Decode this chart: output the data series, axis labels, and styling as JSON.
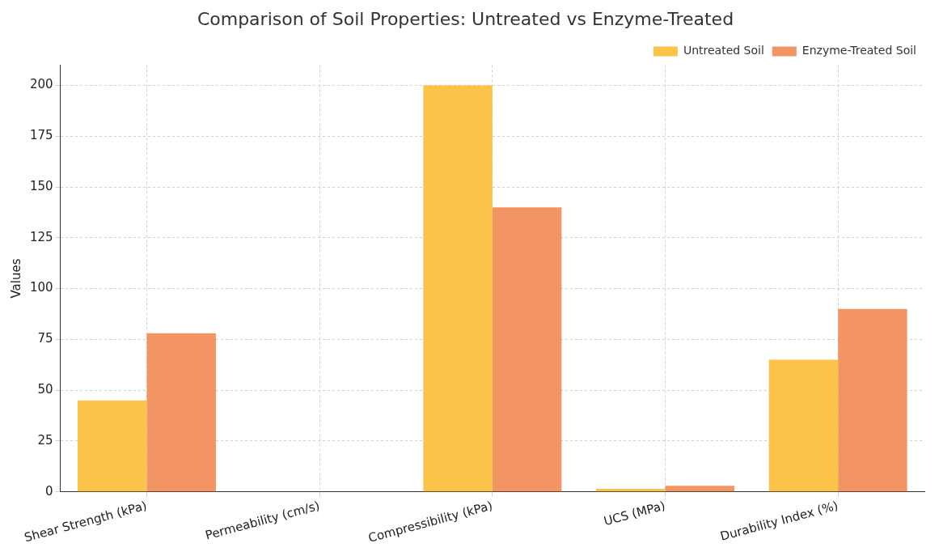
{
  "chart_data": {
    "type": "bar",
    "title": "Comparison of Soil Properties: Untreated vs Enzyme-Treated",
    "ylabel": "Values",
    "categories": [
      "Shear Strength (kPa)",
      "Permeability (cm/s)",
      "Compressibility (kPa)",
      "UCS (MPa)",
      "Durability Index (%)"
    ],
    "series": [
      {
        "name": "Untreated Soil",
        "color": "#fbc34a",
        "values": [
          45,
          0,
          200,
          1.5,
          65
        ]
      },
      {
        "name": "Enzyme-Treated Soil",
        "color": "#f39562",
        "values": [
          78,
          0,
          140,
          3,
          90
        ]
      }
    ],
    "ylim": [
      0,
      210
    ],
    "yticks": [
      0,
      25,
      50,
      75,
      100,
      125,
      150,
      175,
      200
    ],
    "grid": true,
    "legend": "top right"
  }
}
